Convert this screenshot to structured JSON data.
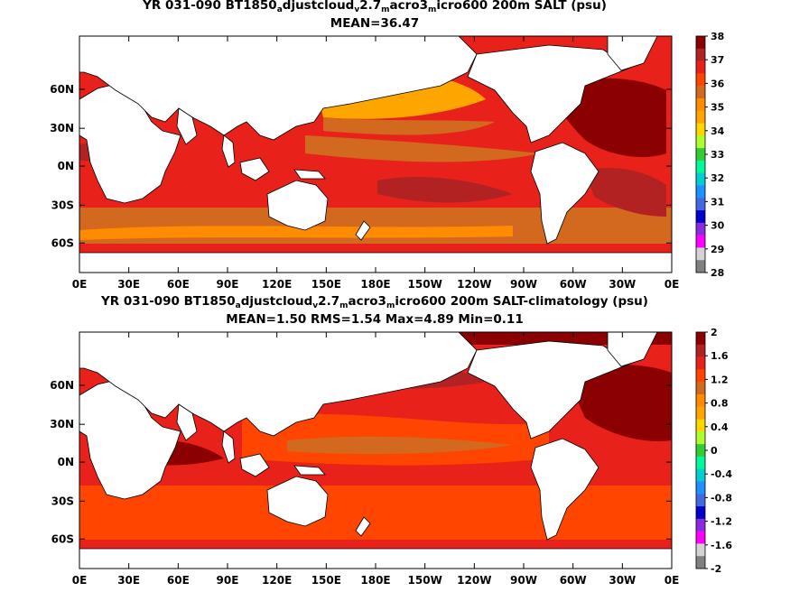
{
  "panels": [
    {
      "title_parts": [
        "YR 031-090 BT1850",
        "a",
        "djustcloud",
        "v",
        "2.7",
        "m",
        "acro3",
        "m",
        "icro600 200m SALT (psu)"
      ],
      "stats": "MEAN=36.47",
      "x_ticks": [
        "0E",
        "30E",
        "60E",
        "90E",
        "120E",
        "150E",
        "180E",
        "150W",
        "120W",
        "90W",
        "60W",
        "30W",
        "0E"
      ],
      "y_ticks": [
        "60N",
        "30N",
        "0N",
        "30S",
        "60S"
      ],
      "colorbar": {
        "labels": [
          "38",
          "37",
          "36",
          "35",
          "34",
          "33",
          "32",
          "31",
          "30",
          "29",
          "28"
        ],
        "colors": [
          "#8b0000",
          "#b22222",
          "#e8221b",
          "#ff4500",
          "#d2691e",
          "#ff8c00",
          "#ffa500",
          "#ffd700",
          "#adff2f",
          "#32cd32",
          "#00fa9a",
          "#00ced1",
          "#1e90ff",
          "#4169e1",
          "#0000cd",
          "#8a2be2",
          "#ff00ff",
          "#d3d3d3",
          "#808080"
        ]
      }
    },
    {
      "title_parts": [
        "YR 031-090 BT1850",
        "a",
        "djustcloud",
        "v",
        "2.7",
        "m",
        "acro3",
        "m",
        "icro600 200m SALT-climatology (psu)"
      ],
      "stats": "MEAN=1.50   RMS=1.54   Max=4.89   Min=0.11",
      "x_ticks": [
        "0E",
        "30E",
        "60E",
        "90E",
        "120E",
        "150E",
        "180E",
        "150W",
        "120W",
        "90W",
        "60W",
        "30W",
        "0E"
      ],
      "y_ticks": [
        "60N",
        "30N",
        "0N",
        "30S",
        "60S"
      ],
      "colorbar": {
        "labels": [
          "2",
          "1.6",
          "1.2",
          "0.8",
          "0.4",
          "0",
          "-0.4",
          "-0.8",
          "-1.2",
          "-1.6",
          "-2"
        ],
        "colors": [
          "#8b0000",
          "#b22222",
          "#e8221b",
          "#ff4500",
          "#d2691e",
          "#ff8c00",
          "#ffa500",
          "#ffd700",
          "#adff2f",
          "#32cd32",
          "#00fa9a",
          "#00ced1",
          "#1e90ff",
          "#4169e1",
          "#0000cd",
          "#8a2be2",
          "#ff00ff",
          "#d3d3d3",
          "#808080"
        ]
      }
    }
  ],
  "map_colors": {
    "ocean_base": "#e8221b",
    "land": "#ffffff",
    "coast": "#000000"
  }
}
